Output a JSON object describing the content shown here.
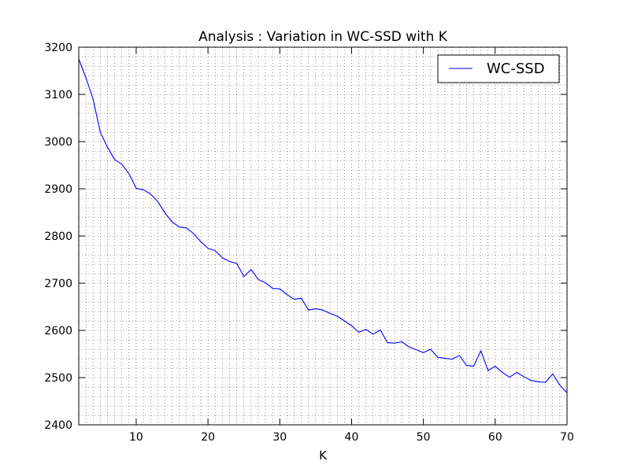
{
  "chart_data": {
    "type": "line",
    "title": "Analysis : Variation in WC-SSD with K",
    "xlabel": "K",
    "ylabel": "",
    "xlim": [
      2,
      70
    ],
    "ylim": [
      2400,
      3200
    ],
    "xticks": [
      10,
      20,
      30,
      40,
      50,
      60,
      70
    ],
    "yticks": [
      2400,
      2500,
      2600,
      2700,
      2800,
      2900,
      3000,
      3100,
      3200
    ],
    "grid": true,
    "legend_position": "top-right",
    "series": [
      {
        "name": "WC-SSD",
        "color": "#0000ff",
        "x": [
          2,
          3,
          4,
          5,
          6,
          7,
          8,
          9,
          10,
          11,
          12,
          13,
          14,
          15,
          16,
          17,
          18,
          19,
          20,
          21,
          22,
          23,
          24,
          25,
          26,
          27,
          28,
          29,
          30,
          31,
          32,
          33,
          34,
          35,
          36,
          37,
          38,
          39,
          40,
          41,
          42,
          43,
          44,
          45,
          46,
          47,
          48,
          49,
          50,
          51,
          52,
          53,
          54,
          55,
          56,
          57,
          58,
          59,
          60,
          61,
          62,
          63,
          64,
          65,
          66,
          67,
          68,
          69,
          70
        ],
        "values": [
          3175,
          3135,
          3090,
          3020,
          2988,
          2962,
          2952,
          2932,
          2901,
          2898,
          2889,
          2873,
          2849,
          2830,
          2819,
          2817,
          2805,
          2788,
          2774,
          2769,
          2754,
          2746,
          2742,
          2714,
          2729,
          2708,
          2701,
          2689,
          2688,
          2676,
          2666,
          2668,
          2643,
          2646,
          2643,
          2636,
          2630,
          2620,
          2610,
          2596,
          2602,
          2592,
          2601,
          2574,
          2573,
          2576,
          2565,
          2559,
          2553,
          2560,
          2543,
          2541,
          2539,
          2547,
          2526,
          2524,
          2557,
          2515,
          2524,
          2511,
          2501,
          2511,
          2502,
          2494,
          2491,
          2490,
          2508,
          2484,
          2468
        ]
      }
    ]
  }
}
